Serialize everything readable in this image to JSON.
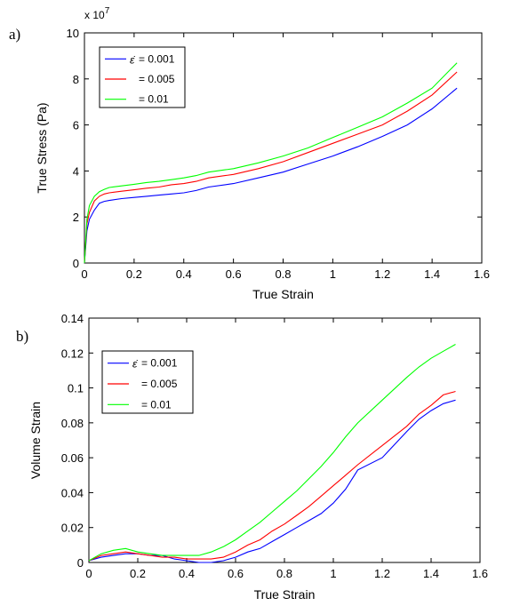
{
  "chart_data": [
    {
      "type": "line",
      "panel_label": "a)",
      "xlabel": "True Strain",
      "ylabel": "True Stress (Pa)",
      "y_exponent_label": "x 10",
      "y_exponent_power": "7",
      "xlim": [
        0,
        1.6
      ],
      "ylim": [
        0,
        10
      ],
      "x_ticks": [
        "0",
        "0.2",
        "0.4",
        "0.6",
        "0.8",
        "1",
        "1.2",
        "1.4",
        "1.6"
      ],
      "y_ticks": [
        "0",
        "2",
        "4",
        "6",
        "8",
        "10"
      ],
      "grid": false,
      "legend_position": "top-left",
      "legend_symbol": "ε̇",
      "series": [
        {
          "name": "= 0.001",
          "color": "#0000ff",
          "x": [
            0,
            0.01,
            0.02,
            0.04,
            0.06,
            0.08,
            0.1,
            0.15,
            0.2,
            0.25,
            0.3,
            0.35,
            0.4,
            0.45,
            0.5,
            0.6,
            0.7,
            0.8,
            0.9,
            1.0,
            1.1,
            1.2,
            1.3,
            1.4,
            1.5
          ],
          "y": [
            0,
            1.4,
            1.9,
            2.3,
            2.6,
            2.68,
            2.72,
            2.8,
            2.85,
            2.9,
            2.95,
            3.0,
            3.05,
            3.15,
            3.3,
            3.45,
            3.7,
            3.95,
            4.3,
            4.65,
            5.05,
            5.5,
            6.0,
            6.7,
            7.6
          ]
        },
        {
          "name": "= 0.005",
          "color": "#ff0000",
          "x": [
            0,
            0.01,
            0.02,
            0.04,
            0.06,
            0.08,
            0.1,
            0.15,
            0.2,
            0.25,
            0.3,
            0.35,
            0.4,
            0.45,
            0.5,
            0.6,
            0.7,
            0.8,
            0.9,
            1.0,
            1.1,
            1.2,
            1.3,
            1.4,
            1.5
          ],
          "y": [
            0,
            1.7,
            2.2,
            2.7,
            2.9,
            3.0,
            3.05,
            3.12,
            3.18,
            3.25,
            3.3,
            3.4,
            3.45,
            3.55,
            3.7,
            3.85,
            4.1,
            4.4,
            4.8,
            5.2,
            5.6,
            6.0,
            6.6,
            7.3,
            8.3
          ]
        },
        {
          "name": "= 0.01",
          "color": "#00ff00",
          "x": [
            0,
            0.01,
            0.02,
            0.04,
            0.06,
            0.08,
            0.1,
            0.15,
            0.2,
            0.25,
            0.3,
            0.35,
            0.4,
            0.45,
            0.5,
            0.6,
            0.7,
            0.8,
            0.9,
            1.0,
            1.1,
            1.2,
            1.3,
            1.4,
            1.5
          ],
          "y": [
            0,
            1.9,
            2.5,
            2.9,
            3.1,
            3.2,
            3.28,
            3.35,
            3.42,
            3.5,
            3.55,
            3.62,
            3.7,
            3.8,
            3.95,
            4.1,
            4.35,
            4.65,
            5.0,
            5.45,
            5.9,
            6.35,
            6.95,
            7.6,
            8.7
          ]
        }
      ]
    },
    {
      "type": "line",
      "panel_label": "b)",
      "xlabel": "True Strain",
      "ylabel": "Volume Strain",
      "xlim": [
        0,
        1.6
      ],
      "ylim": [
        0,
        0.14
      ],
      "x_ticks": [
        "0",
        "0.2",
        "0.4",
        "0.6",
        "0.8",
        "1",
        "1.2",
        "1.4",
        "1.6"
      ],
      "y_ticks": [
        "0",
        "0.02",
        "0.04",
        "0.06",
        "0.08",
        "0.1",
        "0.12",
        "0.14"
      ],
      "grid": false,
      "legend_position": "top-left",
      "legend_symbol": "ε̇",
      "series": [
        {
          "name": "= 0.001",
          "color": "#0000ff",
          "x": [
            0,
            0.05,
            0.1,
            0.15,
            0.2,
            0.25,
            0.3,
            0.35,
            0.4,
            0.45,
            0.5,
            0.55,
            0.6,
            0.65,
            0.7,
            0.75,
            0.8,
            0.85,
            0.9,
            0.95,
            1.0,
            1.05,
            1.1,
            1.2,
            1.3,
            1.35,
            1.4,
            1.45,
            1.5
          ],
          "y": [
            0.001,
            0.003,
            0.004,
            0.005,
            0.005,
            0.004,
            0.004,
            0.002,
            0.001,
            0.0,
            0.0,
            0.001,
            0.003,
            0.006,
            0.008,
            0.012,
            0.016,
            0.02,
            0.024,
            0.028,
            0.034,
            0.042,
            0.053,
            0.06,
            0.075,
            0.082,
            0.087,
            0.091,
            0.093
          ]
        },
        {
          "name": "= 0.005",
          "color": "#ff0000",
          "x": [
            0,
            0.05,
            0.1,
            0.15,
            0.2,
            0.25,
            0.3,
            0.35,
            0.4,
            0.45,
            0.5,
            0.55,
            0.6,
            0.65,
            0.7,
            0.75,
            0.8,
            0.85,
            0.9,
            0.95,
            1.0,
            1.05,
            1.1,
            1.2,
            1.3,
            1.35,
            1.4,
            1.45,
            1.5
          ],
          "y": [
            0.001,
            0.004,
            0.005,
            0.006,
            0.005,
            0.004,
            0.003,
            0.003,
            0.002,
            0.002,
            0.002,
            0.003,
            0.006,
            0.01,
            0.013,
            0.018,
            0.022,
            0.027,
            0.032,
            0.038,
            0.044,
            0.05,
            0.056,
            0.067,
            0.078,
            0.085,
            0.09,
            0.096,
            0.098
          ]
        },
        {
          "name": "= 0.01",
          "color": "#00ff00",
          "x": [
            0,
            0.05,
            0.1,
            0.15,
            0.2,
            0.25,
            0.3,
            0.35,
            0.4,
            0.45,
            0.5,
            0.55,
            0.6,
            0.65,
            0.7,
            0.75,
            0.8,
            0.85,
            0.9,
            0.95,
            1.0,
            1.05,
            1.1,
            1.2,
            1.3,
            1.35,
            1.4,
            1.45,
            1.5
          ],
          "y": [
            0.001,
            0.005,
            0.007,
            0.008,
            0.006,
            0.005,
            0.004,
            0.004,
            0.004,
            0.004,
            0.006,
            0.009,
            0.013,
            0.018,
            0.023,
            0.029,
            0.035,
            0.041,
            0.048,
            0.055,
            0.063,
            0.072,
            0.08,
            0.093,
            0.106,
            0.112,
            0.117,
            0.121,
            0.125
          ]
        }
      ]
    }
  ]
}
